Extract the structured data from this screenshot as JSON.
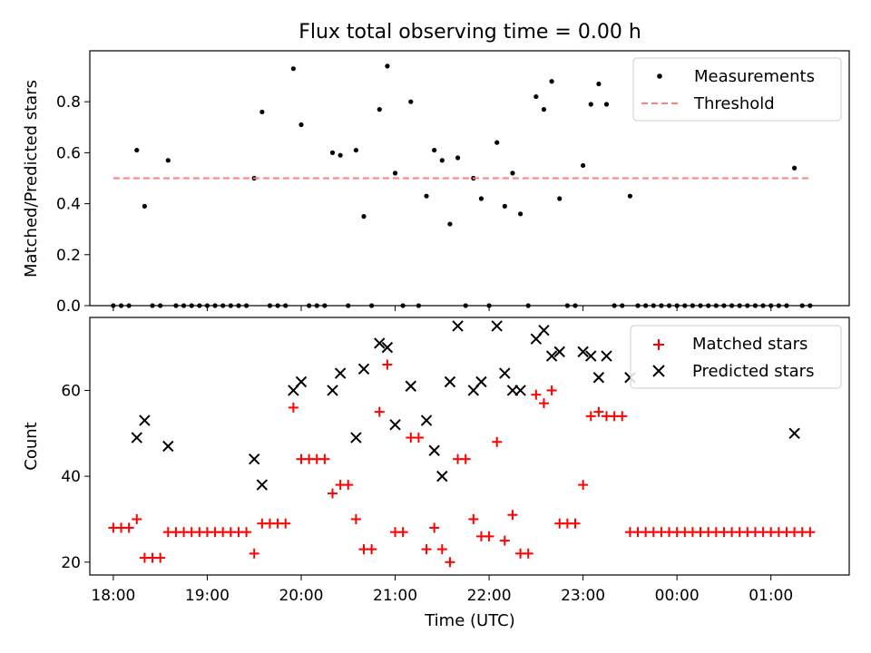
{
  "chart_data": [
    {
      "type": "scatter",
      "title": "Flux total observing time = 0.00 h",
      "xlabel": "",
      "ylabel": "Matched/Predicted stars",
      "xlim": [
        "17:45",
        "01:50"
      ],
      "ylim": [
        0,
        1.0
      ],
      "yticks": [
        "0.0",
        "0.2",
        "0.4",
        "0.6",
        "0.8"
      ],
      "grid": false,
      "legend": {
        "position": "top-right",
        "entries": [
          {
            "label": "Measurements",
            "marker": "dot",
            "color": "#000000"
          },
          {
            "label": "Threshold",
            "marker": "dashed-line",
            "color": "#ff7f7f"
          }
        ]
      },
      "threshold": {
        "value": 0.5,
        "x_start": "18:00",
        "x_end": "01:25",
        "color": "#ff7f7f"
      },
      "series": [
        {
          "name": "Measurements",
          "color": "#000000",
          "points": [
            [
              "18:00",
              0
            ],
            [
              "18:05",
              0
            ],
            [
              "18:10",
              0
            ],
            [
              "18:15",
              0.61
            ],
            [
              "18:20",
              0.39
            ],
            [
              "18:25",
              0
            ],
            [
              "18:30",
              0
            ],
            [
              "18:35",
              0.57
            ],
            [
              "18:40",
              0
            ],
            [
              "18:45",
              0
            ],
            [
              "18:50",
              0
            ],
            [
              "18:55",
              0
            ],
            [
              "19:00",
              0
            ],
            [
              "19:05",
              0
            ],
            [
              "19:10",
              0
            ],
            [
              "19:15",
              0
            ],
            [
              "19:20",
              0
            ],
            [
              "19:25",
              0
            ],
            [
              "19:30",
              0.5
            ],
            [
              "19:35",
              0.76
            ],
            [
              "19:40",
              0
            ],
            [
              "19:45",
              0
            ],
            [
              "19:50",
              0
            ],
            [
              "19:55",
              0.93
            ],
            [
              "20:00",
              0.71
            ],
            [
              "20:05",
              0
            ],
            [
              "20:10",
              0
            ],
            [
              "20:15",
              0
            ],
            [
              "20:20",
              0.6
            ],
            [
              "20:25",
              0.59
            ],
            [
              "20:30",
              0
            ],
            [
              "20:35",
              0.61
            ],
            [
              "20:40",
              0.35
            ],
            [
              "20:45",
              0
            ],
            [
              "20:50",
              0.77
            ],
            [
              "20:55",
              0.94
            ],
            [
              "21:00",
              0.52
            ],
            [
              "21:05",
              0
            ],
            [
              "21:10",
              0.8
            ],
            [
              "21:15",
              0
            ],
            [
              "21:20",
              0.43
            ],
            [
              "21:25",
              0.61
            ],
            [
              "21:30",
              0.57
            ],
            [
              "21:35",
              0.32
            ],
            [
              "21:40",
              0.58
            ],
            [
              "21:45",
              0
            ],
            [
              "21:50",
              0.5
            ],
            [
              "21:55",
              0.42
            ],
            [
              "22:00",
              0
            ],
            [
              "22:05",
              0.64
            ],
            [
              "22:10",
              0.39
            ],
            [
              "22:15",
              0.52
            ],
            [
              "22:20",
              0.36
            ],
            [
              "22:25",
              0
            ],
            [
              "22:30",
              0.82
            ],
            [
              "22:35",
              0.77
            ],
            [
              "22:40",
              0.88
            ],
            [
              "22:45",
              0.42
            ],
            [
              "22:50",
              0
            ],
            [
              "22:55",
              0
            ],
            [
              "23:00",
              0.55
            ],
            [
              "23:05",
              0.79
            ],
            [
              "23:10",
              0.87
            ],
            [
              "23:15",
              0.79
            ],
            [
              "23:20",
              0
            ],
            [
              "23:25",
              0
            ],
            [
              "23:30",
              0.43
            ],
            [
              "23:35",
              0
            ],
            [
              "23:40",
              0
            ],
            [
              "23:45",
              0
            ],
            [
              "23:50",
              0
            ],
            [
              "23:55",
              0
            ],
            [
              "00:00",
              0
            ],
            [
              "00:05",
              0
            ],
            [
              "00:10",
              0
            ],
            [
              "00:15",
              0
            ],
            [
              "00:20",
              0
            ],
            [
              "00:25",
              0
            ],
            [
              "00:30",
              0
            ],
            [
              "00:35",
              0
            ],
            [
              "00:40",
              0
            ],
            [
              "00:45",
              0
            ],
            [
              "00:50",
              0
            ],
            [
              "00:55",
              0
            ],
            [
              "01:00",
              0
            ],
            [
              "01:05",
              0
            ],
            [
              "01:10",
              0
            ],
            [
              "01:15",
              0.54
            ],
            [
              "01:20",
              0
            ],
            [
              "01:25",
              0
            ]
          ]
        }
      ]
    },
    {
      "type": "scatter",
      "title": "",
      "xlabel": "Time (UTC)",
      "ylabel": "Count",
      "xlim": [
        "17:45",
        "01:50"
      ],
      "ylim": [
        17,
        77
      ],
      "yticks": [
        "20",
        "40",
        "60"
      ],
      "xticks": [
        "18:00",
        "19:00",
        "20:00",
        "21:00",
        "22:00",
        "23:00",
        "00:00",
        "01:00"
      ],
      "grid": false,
      "legend": {
        "position": "top-right",
        "entries": [
          {
            "label": "Matched stars",
            "marker": "plus",
            "color": "#ff0000"
          },
          {
            "label": "Predicted stars",
            "marker": "x",
            "color": "#000000"
          }
        ]
      },
      "series": [
        {
          "name": "Matched stars",
          "color": "#ff0000",
          "points": [
            [
              "18:00",
              28
            ],
            [
              "18:05",
              28
            ],
            [
              "18:10",
              28
            ],
            [
              "18:15",
              30
            ],
            [
              "18:20",
              21
            ],
            [
              "18:25",
              21
            ],
            [
              "18:30",
              21
            ],
            [
              "18:35",
              27
            ],
            [
              "18:40",
              27
            ],
            [
              "18:45",
              27
            ],
            [
              "18:50",
              27
            ],
            [
              "18:55",
              27
            ],
            [
              "19:00",
              27
            ],
            [
              "19:05",
              27
            ],
            [
              "19:10",
              27
            ],
            [
              "19:15",
              27
            ],
            [
              "19:20",
              27
            ],
            [
              "19:25",
              27
            ],
            [
              "19:30",
              22
            ],
            [
              "19:35",
              29
            ],
            [
              "19:40",
              29
            ],
            [
              "19:45",
              29
            ],
            [
              "19:50",
              29
            ],
            [
              "19:55",
              56
            ],
            [
              "20:00",
              44
            ],
            [
              "20:05",
              44
            ],
            [
              "20:10",
              44
            ],
            [
              "20:15",
              44
            ],
            [
              "20:20",
              36
            ],
            [
              "20:25",
              38
            ],
            [
              "20:30",
              38
            ],
            [
              "20:35",
              30
            ],
            [
              "20:40",
              23
            ],
            [
              "20:45",
              23
            ],
            [
              "20:50",
              55
            ],
            [
              "20:55",
              66
            ],
            [
              "21:00",
              27
            ],
            [
              "21:05",
              27
            ],
            [
              "21:10",
              49
            ],
            [
              "21:15",
              49
            ],
            [
              "21:20",
              23
            ],
            [
              "21:25",
              28
            ],
            [
              "21:30",
              23
            ],
            [
              "21:35",
              20
            ],
            [
              "21:40",
              44
            ],
            [
              "21:45",
              44
            ],
            [
              "21:50",
              30
            ],
            [
              "21:55",
              26
            ],
            [
              "22:00",
              26
            ],
            [
              "22:05",
              48
            ],
            [
              "22:10",
              25
            ],
            [
              "22:15",
              31
            ],
            [
              "22:20",
              22
            ],
            [
              "22:25",
              22
            ],
            [
              "22:30",
              59
            ],
            [
              "22:35",
              57
            ],
            [
              "22:40",
              60
            ],
            [
              "22:45",
              29
            ],
            [
              "22:50",
              29
            ],
            [
              "22:55",
              29
            ],
            [
              "23:00",
              38
            ],
            [
              "23:05",
              54
            ],
            [
              "23:10",
              55
            ],
            [
              "23:15",
              54
            ],
            [
              "23:20",
              54
            ],
            [
              "23:25",
              54
            ],
            [
              "23:30",
              27
            ],
            [
              "23:35",
              27
            ],
            [
              "23:40",
              27
            ],
            [
              "23:45",
              27
            ],
            [
              "23:50",
              27
            ],
            [
              "23:55",
              27
            ],
            [
              "00:00",
              27
            ],
            [
              "00:05",
              27
            ],
            [
              "00:10",
              27
            ],
            [
              "00:15",
              27
            ],
            [
              "00:20",
              27
            ],
            [
              "00:25",
              27
            ],
            [
              "00:30",
              27
            ],
            [
              "00:35",
              27
            ],
            [
              "00:40",
              27
            ],
            [
              "00:45",
              27
            ],
            [
              "00:50",
              27
            ],
            [
              "00:55",
              27
            ],
            [
              "01:00",
              27
            ],
            [
              "01:05",
              27
            ],
            [
              "01:10",
              27
            ],
            [
              "01:15",
              27
            ],
            [
              "01:20",
              27
            ],
            [
              "01:25",
              27
            ]
          ]
        },
        {
          "name": "Predicted stars",
          "color": "#000000",
          "points": [
            [
              "18:15",
              49
            ],
            [
              "18:20",
              53
            ],
            [
              "18:35",
              47
            ],
            [
              "19:30",
              44
            ],
            [
              "19:35",
              38
            ],
            [
              "19:55",
              60
            ],
            [
              "20:00",
              62
            ],
            [
              "20:20",
              60
            ],
            [
              "20:25",
              64
            ],
            [
              "20:35",
              49
            ],
            [
              "20:40",
              65
            ],
            [
              "20:50",
              71
            ],
            [
              "20:55",
              70
            ],
            [
              "21:00",
              52
            ],
            [
              "21:10",
              61
            ],
            [
              "21:20",
              53
            ],
            [
              "21:25",
              46
            ],
            [
              "21:30",
              40
            ],
            [
              "21:35",
              62
            ],
            [
              "21:40",
              75
            ],
            [
              "21:50",
              60
            ],
            [
              "21:55",
              62
            ],
            [
              "22:05",
              75
            ],
            [
              "22:10",
              64
            ],
            [
              "22:15",
              60
            ],
            [
              "22:20",
              60
            ],
            [
              "22:30",
              72
            ],
            [
              "22:35",
              74
            ],
            [
              "22:40",
              68
            ],
            [
              "22:45",
              69
            ],
            [
              "23:00",
              69
            ],
            [
              "23:05",
              68
            ],
            [
              "23:10",
              63
            ],
            [
              "23:15",
              68
            ],
            [
              "23:30",
              63
            ],
            [
              "01:15",
              50
            ]
          ]
        }
      ]
    }
  ]
}
